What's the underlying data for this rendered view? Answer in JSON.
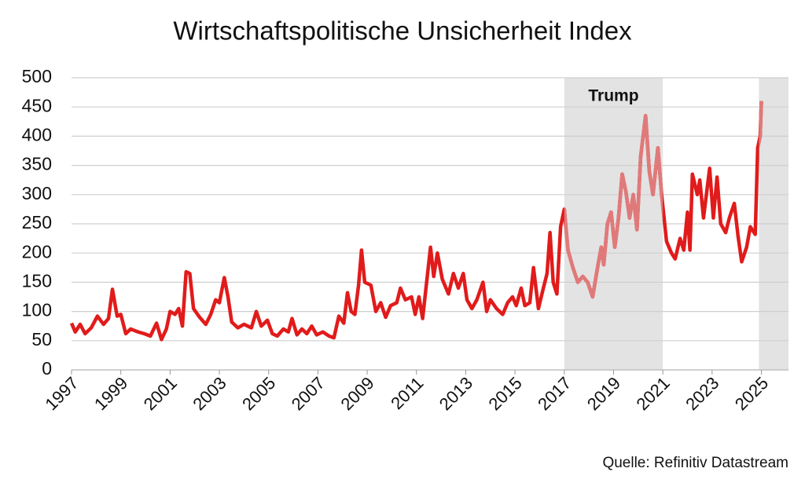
{
  "chart_data": {
    "type": "line",
    "title": "Wirtschaftspolitische Unsicherheit Index",
    "source": "Quelle: Refinitiv Datastream",
    "xlim": [
      1997,
      2026.1
    ],
    "xticks": [
      1997,
      1999,
      2001,
      2003,
      2005,
      2007,
      2009,
      2011,
      2013,
      2015,
      2017,
      2019,
      2021,
      2023,
      2025
    ],
    "ylim": [
      0,
      500
    ],
    "yticks": [
      0,
      50,
      100,
      150,
      200,
      250,
      300,
      350,
      400,
      450,
      500
    ],
    "grid": true,
    "shaded_regions": [
      {
        "start": 2017,
        "end": 2021,
        "label": "Trump",
        "color": "#e3e3e3"
      },
      {
        "start": 2024.9,
        "end": 2026.1,
        "color": "#e3e3e3"
      }
    ],
    "series": [
      {
        "color": "#e11b1b",
        "highlight_color": "#e07a7a",
        "x": [
          1997.0,
          1997.15,
          1997.35,
          1997.55,
          1997.8,
          1998.05,
          1998.3,
          1998.5,
          1998.66,
          1998.85,
          1999.0,
          1999.2,
          1999.4,
          1999.7,
          1999.95,
          2000.2,
          2000.45,
          2000.65,
          2000.85,
          2001.0,
          2001.2,
          2001.35,
          2001.5,
          2001.65,
          2001.8,
          2001.95,
          2002.2,
          2002.45,
          2002.65,
          2002.85,
          2003.0,
          2003.2,
          2003.35,
          2003.5,
          2003.75,
          2004.0,
          2004.3,
          2004.5,
          2004.7,
          2004.95,
          2005.15,
          2005.35,
          2005.6,
          2005.8,
          2005.95,
          2006.15,
          2006.35,
          2006.55,
          2006.75,
          2006.95,
          2007.2,
          2007.45,
          2007.65,
          2007.85,
          2008.05,
          2008.2,
          2008.35,
          2008.5,
          2008.65,
          2008.77,
          2008.9,
          2009.15,
          2009.35,
          2009.55,
          2009.75,
          2009.95,
          2010.2,
          2010.35,
          2010.55,
          2010.8,
          2010.95,
          2011.1,
          2011.25,
          2011.57,
          2011.7,
          2011.85,
          2012.05,
          2012.3,
          2012.5,
          2012.7,
          2012.9,
          2013.05,
          2013.25,
          2013.45,
          2013.7,
          2013.85,
          2014.0,
          2014.25,
          2014.5,
          2014.7,
          2014.9,
          2015.05,
          2015.25,
          2015.4,
          2015.6,
          2015.75,
          2015.95,
          2016.15,
          2016.3,
          2016.42,
          2016.55,
          2016.7,
          2016.85,
          2017.0,
          2017.15,
          2017.35,
          2017.55,
          2017.75,
          2017.95,
          2018.15,
          2018.35,
          2018.5,
          2018.6,
          2018.75,
          2018.9,
          2019.05,
          2019.2,
          2019.35,
          2019.5,
          2019.65,
          2019.8,
          2019.95,
          2020.1,
          2020.3,
          2020.45,
          2020.6,
          2020.8,
          2020.95,
          2021.15,
          2021.35,
          2021.5,
          2021.7,
          2021.85,
          2022.0,
          2022.1,
          2022.2,
          2022.4,
          2022.5,
          2022.65,
          2022.9,
          2023.05,
          2023.2,
          2023.35,
          2023.55,
          2023.7,
          2023.9,
          2024.05,
          2024.2,
          2024.4,
          2024.55,
          2024.75,
          2024.85,
          2024.95,
          2025.0
        ],
        "values": [
          80,
          65,
          78,
          62,
          72,
          92,
          78,
          88,
          138,
          92,
          95,
          62,
          70,
          65,
          62,
          58,
          80,
          52,
          70,
          100,
          95,
          105,
          75,
          168,
          165,
          105,
          90,
          78,
          95,
          120,
          115,
          158,
          125,
          82,
          72,
          78,
          72,
          100,
          75,
          85,
          62,
          58,
          70,
          65,
          88,
          60,
          70,
          62,
          75,
          60,
          65,
          58,
          55,
          92,
          80,
          132,
          100,
          95,
          145,
          205,
          150,
          145,
          100,
          115,
          90,
          110,
          115,
          140,
          120,
          125,
          95,
          125,
          88,
          210,
          160,
          200,
          155,
          130,
          165,
          140,
          165,
          120,
          105,
          120,
          150,
          100,
          120,
          105,
          95,
          115,
          125,
          110,
          140,
          110,
          115,
          175,
          105,
          140,
          165,
          235,
          150,
          130,
          245,
          275,
          205,
          175,
          150,
          160,
          150,
          125,
          175,
          210,
          180,
          250,
          270,
          210,
          260,
          335,
          305,
          260,
          300,
          240,
          365,
          435,
          340,
          300,
          380,
          300,
          220,
          200,
          190,
          225,
          205,
          270,
          205,
          335,
          300,
          325,
          260,
          345,
          260,
          330,
          250,
          235,
          260,
          285,
          230,
          185,
          210,
          245,
          232,
          380,
          400,
          460
        ]
      }
    ]
  }
}
